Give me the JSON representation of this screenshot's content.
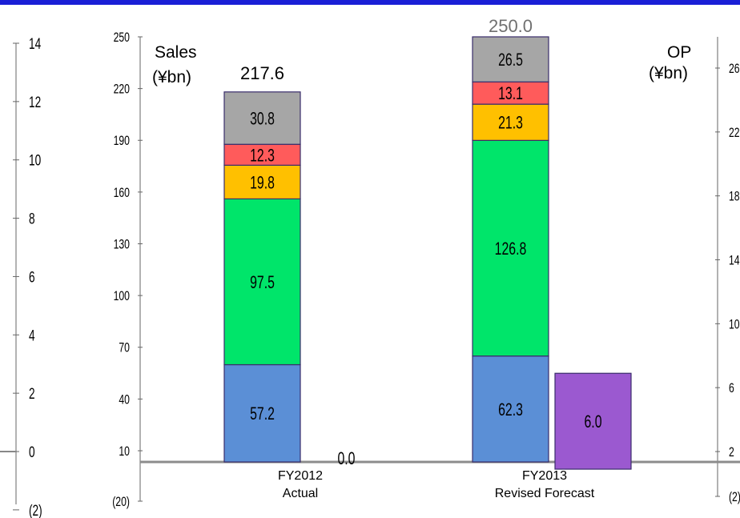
{
  "chart_data": {
    "type": "bar",
    "stacked": true,
    "categories": [
      "FY2012\nActual",
      "FY2013\nRevised Forecast"
    ],
    "sales_axis": {
      "label_line1": "Sales",
      "label_line2": "(¥bn)",
      "ticks": [
        "250",
        "220",
        "190",
        "160",
        "130",
        "100",
        "70",
        "40",
        "10",
        "(20)"
      ],
      "ylim": [
        -20,
        250
      ]
    },
    "op_axis": {
      "label_line1": "OP",
      "label_line2": "(¥bn)",
      "ticks": [
        "26",
        "22",
        "18",
        "14",
        "10",
        "6",
        "2",
        "(2)"
      ],
      "ylim": [
        -2,
        28
      ]
    },
    "far_left_axis": {
      "ticks": [
        "14",
        "12",
        "10",
        "8",
        "6",
        "4",
        "2",
        "0",
        "(2)"
      ],
      "ylim": [
        -2,
        14
      ]
    },
    "sales_series": [
      {
        "color": "#5b8fd6",
        "values": [
          57.2,
          62.3
        ],
        "labels": [
          "57.2",
          "62.3"
        ]
      },
      {
        "color": "#00e56a",
        "values": [
          97.5,
          126.8
        ],
        "labels": [
          "97.5",
          "126.8"
        ]
      },
      {
        "color": "#ffc000",
        "values": [
          19.8,
          21.3
        ],
        "labels": [
          "19.8",
          "21.3"
        ]
      },
      {
        "color": "#ff5b5b",
        "values": [
          12.3,
          13.1
        ],
        "labels": [
          "12.3",
          "13.1"
        ]
      },
      {
        "color": "#a6a6a6",
        "values": [
          30.8,
          26.5
        ],
        "labels": [
          "30.8",
          "26.5"
        ]
      }
    ],
    "sales_totals": [
      "217.6",
      "250.0"
    ],
    "op_series": {
      "color": "#9b59d0",
      "values": [
        0.0,
        6.0
      ],
      "labels": [
        "0.0",
        "6.0"
      ]
    }
  }
}
